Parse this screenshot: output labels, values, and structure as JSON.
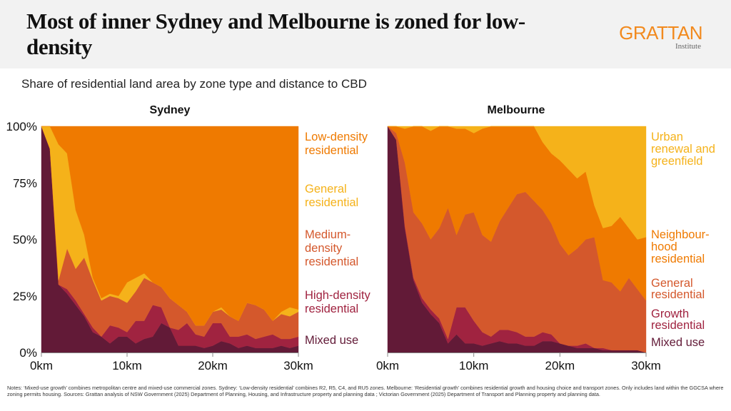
{
  "header": {
    "title": "Most of inner Sydney and Melbourne is zoned for low-density",
    "logo_main": "GRATTAN",
    "logo_sub": "Institute"
  },
  "subtitle": "Share of residential land area by zone type and distance to CBD",
  "notes": "Notes: ‘Mixed-use growth’ combines metropolitan centre and mixed-use commercial zones. Sydney: ‘Low-density residential’ combines R2, R5, C4, and RU5 zones. Melbourne: ‘Residential growth’ combines residential growth and housing choice and transport zones. Only includes land within the GGCSA where zoning permits housing.  Sources: Grattan analysis of NSW Government (2025) Department of Planning, Housing, and Infrastructure property and planning data ; Victorian Government (2025) Department of Transport and Planning property and planning data.",
  "colors": {
    "mixed": "#621a37",
    "high": "#a02340",
    "medium": "#d4582c",
    "general_syd": "#f5b21a",
    "low": "#ef7a00",
    "urban": "#f5b21a",
    "neighbourhood": "#ef7a00",
    "general_mel": "#d4582c",
    "growth": "#a02340"
  },
  "chart_data": [
    {
      "type": "area",
      "stacked": true,
      "title": "Sydney",
      "xlabel": "",
      "ylabel": "",
      "x": [
        0,
        1,
        2,
        3,
        4,
        5,
        6,
        7,
        8,
        9,
        10,
        11,
        12,
        13,
        14,
        15,
        16,
        17,
        18,
        19,
        20,
        21,
        22,
        23,
        24,
        25,
        26,
        27,
        28,
        29,
        30
      ],
      "xticks": [
        "0km",
        "10km",
        "20km",
        "30km"
      ],
      "yticks": [
        "0%",
        "25%",
        "50%",
        "75%",
        "100%"
      ],
      "ylim": [
        0,
        100
      ],
      "xlim": [
        0,
        30
      ],
      "series": [
        {
          "name": "Mixed use",
          "color_key": "mixed",
          "values": [
            100,
            90,
            30,
            26,
            21,
            16,
            9,
            7,
            4,
            7,
            7,
            4,
            6,
            7,
            13,
            11,
            3,
            3,
            3,
            2,
            3,
            5,
            4,
            2,
            3,
            2,
            2,
            2,
            3,
            2,
            3
          ]
        },
        {
          "name": "High-density residential",
          "color_key": "high",
          "values": [
            0,
            0,
            0,
            2,
            2,
            1,
            2,
            0,
            8,
            4,
            2,
            10,
            8,
            14,
            7,
            0,
            7,
            10,
            5,
            5,
            10,
            8,
            3,
            5,
            5,
            4,
            5,
            6,
            3,
            4,
            4
          ]
        },
        {
          "name": "Medium-density residential",
          "color_key": "medium",
          "values": [
            0,
            0,
            2,
            18,
            14,
            25,
            21,
            16,
            13,
            13,
            13,
            13,
            19,
            10,
            9,
            13,
            11,
            5,
            4,
            5,
            5,
            6,
            9,
            7,
            14,
            15,
            12,
            6,
            11,
            10,
            11
          ]
        },
        {
          "name": "General residential",
          "color_key": "general_syd",
          "values": [
            0,
            10,
            60,
            42,
            26,
            10,
            1,
            1,
            1,
            1,
            9,
            6,
            2,
            0,
            0,
            0,
            0,
            0,
            0,
            0,
            0,
            1,
            0,
            0,
            0,
            0,
            0,
            0,
            1,
            4,
            1
          ]
        },
        {
          "name": "Low-density residential",
          "color_key": "low",
          "values": [
            0,
            0,
            8,
            12,
            37,
            48,
            67,
            76,
            74,
            75,
            69,
            67,
            65,
            69,
            71,
            76,
            79,
            82,
            88,
            88,
            82,
            80,
            84,
            86,
            78,
            79,
            81,
            86,
            82,
            80,
            81
          ]
        }
      ],
      "legend_order": [
        "Low-density residential",
        "General residential",
        "Medium-density residential",
        "High-density residential",
        "Mixed use"
      ],
      "legend_placement": "right"
    },
    {
      "type": "area",
      "stacked": true,
      "title": "Melbourne",
      "xlabel": "",
      "ylabel": "",
      "x": [
        0,
        1,
        2,
        3,
        4,
        5,
        6,
        7,
        8,
        9,
        10,
        11,
        12,
        13,
        14,
        15,
        16,
        17,
        18,
        19,
        20,
        21,
        22,
        23,
        24,
        25,
        26,
        27,
        28,
        29,
        30
      ],
      "xticks": [
        "0km",
        "10km",
        "20km",
        "30km"
      ],
      "ylim": [
        0,
        100
      ],
      "xlim": [
        0,
        30
      ],
      "series": [
        {
          "name": "Mixed use",
          "color_key": "mixed",
          "values": [
            100,
            94,
            55,
            32,
            22,
            17,
            13,
            4,
            8,
            4,
            4,
            3,
            4,
            5,
            4,
            4,
            3,
            3,
            5,
            5,
            4,
            3,
            2,
            2,
            2,
            1,
            1,
            1,
            1,
            1,
            0
          ]
        },
        {
          "name": "Growth residential",
          "color_key": "growth",
          "values": [
            0,
            0,
            1,
            1,
            2,
            2,
            2,
            2,
            12,
            16,
            10,
            6,
            3,
            5,
            6,
            5,
            4,
            4,
            4,
            3,
            0,
            0,
            1,
            2,
            0,
            1,
            0,
            0,
            0,
            0,
            0
          ]
        },
        {
          "name": "General residential",
          "color_key": "general_mel",
          "values": [
            0,
            3,
            28,
            29,
            33,
            31,
            40,
            58,
            32,
            41,
            48,
            43,
            42,
            48,
            54,
            61,
            64,
            60,
            54,
            49,
            44,
            40,
            43,
            46,
            49,
            30,
            30,
            26,
            32,
            27,
            23
          ]
        },
        {
          "name": "Neighbourhood residential",
          "color_key": "neighbourhood",
          "values": [
            0,
            3,
            15,
            38,
            43,
            48,
            45,
            36,
            47,
            38,
            35,
            47,
            51,
            42,
            36,
            30,
            29,
            33,
            30,
            31,
            37,
            38,
            31,
            30,
            14,
            23,
            25,
            33,
            22,
            22,
            28
          ]
        },
        {
          "name": "Urban renewal and greenfield",
          "color_key": "urban",
          "values": [
            0,
            0,
            1,
            0,
            0,
            2,
            0,
            0,
            1,
            1,
            3,
            1,
            0,
            0,
            0,
            0,
            0,
            0,
            7,
            12,
            15,
            19,
            23,
            20,
            35,
            45,
            44,
            40,
            45,
            50,
            49
          ]
        }
      ],
      "legend_order": [
        "Urban renewal and greenfield",
        "Neighbour-hood residential",
        "General residential",
        "Growth residential",
        "Mixed use"
      ],
      "legend_placement": "right"
    }
  ],
  "legend": {
    "sydney": [
      {
        "text": "Low-density residential",
        "lines": [
          "Low-density",
          "residential"
        ],
        "color_key": "low"
      },
      {
        "text": "General residential",
        "lines": [
          "General",
          "residential"
        ],
        "color_key": "general_syd"
      },
      {
        "text": "Medium-density residential",
        "lines": [
          "Medium-",
          "density",
          "residential"
        ],
        "color_key": "medium"
      },
      {
        "text": "High-density residential",
        "lines": [
          "High-density",
          "residential"
        ],
        "color_key": "high"
      },
      {
        "text": "Mixed use",
        "lines": [
          "Mixed use"
        ],
        "color_key": "mixed"
      }
    ],
    "melbourne": [
      {
        "text": "Urban renewal and greenfield",
        "lines": [
          "Urban",
          "renewal and",
          "greenfield"
        ],
        "color_key": "urban"
      },
      {
        "text": "Neighbourhood residential",
        "lines": [
          "Neighbour-",
          "hood",
          "residential"
        ],
        "color_key": "neighbourhood"
      },
      {
        "text": "General residential",
        "lines": [
          "General",
          "residential"
        ],
        "color_key": "general_mel"
      },
      {
        "text": "Growth residential",
        "lines": [
          "Growth",
          "residential"
        ],
        "color_key": "growth"
      },
      {
        "text": "Mixed use",
        "lines": [
          "Mixed use"
        ],
        "color_key": "mixed"
      }
    ]
  }
}
